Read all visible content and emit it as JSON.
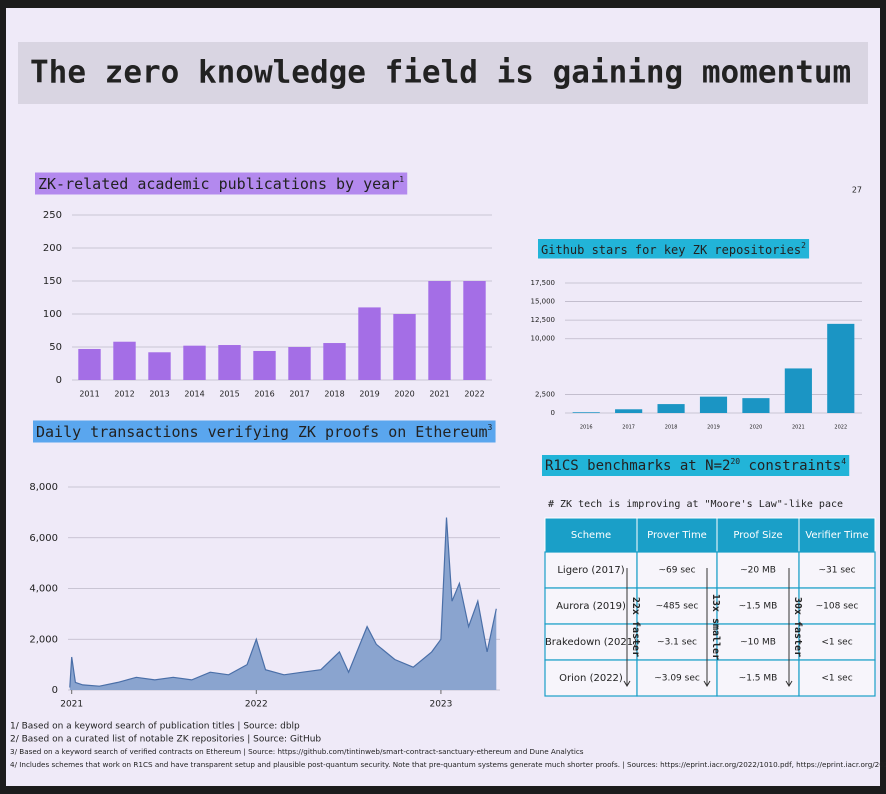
{
  "slide": {
    "title": "The zero knowledge field is gaining momentum",
    "page_number": "27",
    "footnotes": [
      "1/ Based on a keyword search of publication titles | Source: dblp",
      "2/ Based on a curated list of notable ZK repositories | Source: GitHub",
      "3/ Based on a keyword search of verified contracts on Ethereum | Source: https://github.com/tintinweb/smart-contract-sanctuary-ethereum and Dune Analytics",
      "4/ Includes schemes that work on R1CS and have transparent setup and plausible post-quantum security. Note that pre-quantum systems generate much shorter proofs. | Sources: https://eprint.iacr.org/2022/1010.pdf, https://eprint.iacr.org/2021/1043.pdf"
    ]
  },
  "chart_data": [
    {
      "type": "bar",
      "title": "ZK-related academic publications by year",
      "title_note": "1",
      "color": "#a46ee6",
      "categories": [
        "2011",
        "2012",
        "2013",
        "2014",
        "2015",
        "2016",
        "2017",
        "2018",
        "2019",
        "2020",
        "2021",
        "2022"
      ],
      "values": [
        47,
        58,
        42,
        52,
        53,
        44,
        50,
        56,
        110,
        100,
        150,
        150
      ],
      "ylim": [
        0,
        250
      ],
      "yticks": [
        0,
        50,
        100,
        150,
        200,
        250
      ],
      "grid": true
    },
    {
      "type": "bar",
      "title": "Github stars for key ZK repositories",
      "title_note": "2",
      "color": "#1b95c4",
      "categories": [
        "2016",
        "2017",
        "2018",
        "2019",
        "2020",
        "2021",
        "2022"
      ],
      "values": [
        100,
        500,
        1200,
        2200,
        2000,
        6000,
        12000
      ],
      "ylim": [
        0,
        17500
      ],
      "yticks": [
        0,
        {
          "value": 2500,
          "label": "2,500"
        },
        {
          "value": 10000,
          "label": "10,000"
        },
        {
          "value": 12500,
          "label": "12,500"
        },
        {
          "value": 15000,
          "label": "15,000"
        },
        {
          "value": 17500,
          "label": "17,500"
        }
      ],
      "grid": true
    },
    {
      "type": "line",
      "title": "Daily transactions verifying ZK proofs on Ethereum",
      "title_note": "3",
      "color": "#4a6fa8",
      "x": [
        2020.99,
        2021.0,
        2021.02,
        2021.06,
        2021.15,
        2021.25,
        2021.35,
        2021.45,
        2021.55,
        2021.65,
        2021.75,
        2021.85,
        2021.95,
        2022.0,
        2022.05,
        2022.15,
        2022.25,
        2022.35,
        2022.45,
        2022.5,
        2022.6,
        2022.65,
        2022.75,
        2022.85,
        2022.95,
        2023.0,
        2023.03,
        2023.06,
        2023.1,
        2023.15,
        2023.2,
        2023.25,
        2023.3
      ],
      "values": [
        100,
        1300,
        300,
        200,
        150,
        300,
        500,
        400,
        500,
        400,
        700,
        600,
        1000,
        2000,
        800,
        600,
        700,
        800,
        1500,
        700,
        2500,
        1800,
        1200,
        900,
        1500,
        2000,
        6800,
        3500,
        4200,
        2500,
        3500,
        1500,
        3200
      ],
      "xlim": [
        2020.98,
        2023.32
      ],
      "xticks": [
        2021,
        2022,
        2023
      ],
      "ylim": [
        0,
        8000
      ],
      "yticks": [
        0,
        {
          "value": 2000,
          "label": "2,000"
        },
        {
          "value": 4000,
          "label": "4,000"
        },
        {
          "value": 6000,
          "label": "6,000"
        },
        {
          "value": 8000,
          "label": "8,000"
        }
      ],
      "grid": true
    }
  ],
  "benchmarks": {
    "title": "R1CS benchmarks at N=2",
    "exponent": "20",
    "title_end": " constraints",
    "title_note": "4",
    "comment": "# ZK tech is improving at \"Moore's Law\"-like pace",
    "columns": [
      "Scheme",
      "Prover Time",
      "Proof Size",
      "Verifier Time"
    ],
    "rows": [
      [
        "Ligero (2017)",
        "~69 sec",
        "~20 MB",
        "~31 sec"
      ],
      [
        "Aurora (2019)",
        "~485 sec",
        "~1.5 MB",
        "~108 sec"
      ],
      [
        "Brakedown (2021)",
        "~3.1 sec",
        "~10 MB",
        "<1 sec"
      ],
      [
        "Orion (2022)",
        "~3.09 sec",
        "~1.5 MB",
        "<1 sec"
      ]
    ],
    "annotations": [
      "22x faster",
      "13x smaller",
      "30x faster"
    ]
  }
}
